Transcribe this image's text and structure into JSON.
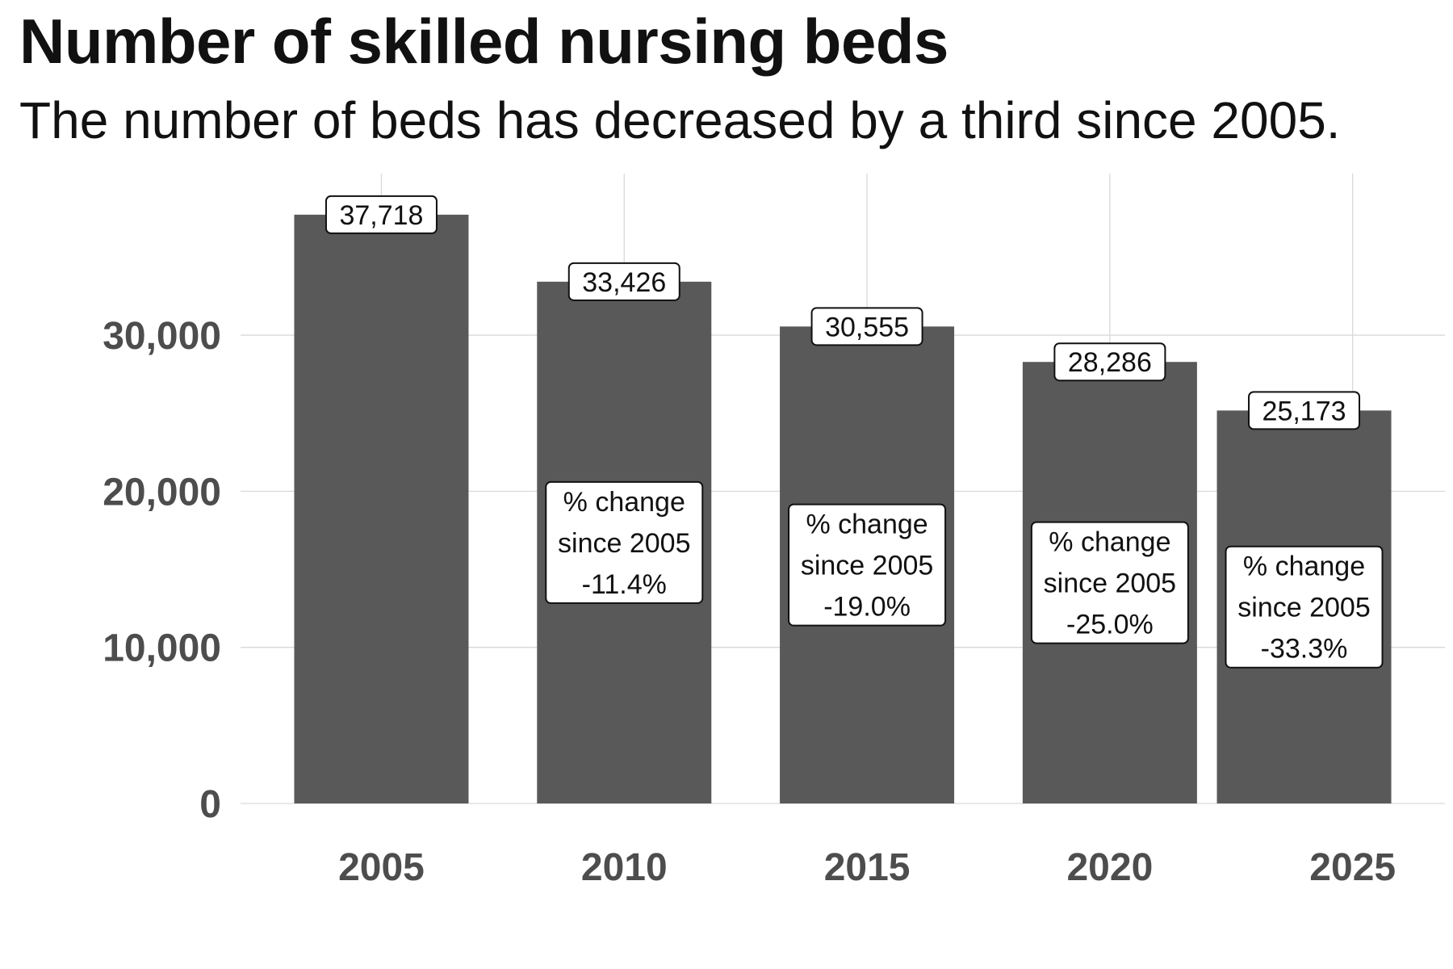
{
  "chart_data": {
    "type": "bar",
    "title": "Number of skilled nursing beds",
    "subtitle": "The number of beds has decreased by a third since 2005.",
    "xlabel": "",
    "ylabel": "",
    "categories": [
      "2005",
      "2010",
      "2015",
      "2020",
      "2025"
    ],
    "x": [
      2005,
      2010,
      2015,
      2020,
      2024
    ],
    "values": [
      37718,
      33426,
      30555,
      28286,
      25173
    ],
    "value_labels": [
      "37,718",
      "33,426",
      "30,555",
      "28,286",
      "25,173"
    ],
    "change_labels": [
      null,
      [
        "% change",
        "since 2005",
        "-11.4%"
      ],
      [
        "% change",
        "since 2005",
        "-19.0%"
      ],
      [
        "% change",
        "since 2005",
        "-25.0%"
      ],
      [
        "% change",
        "since 2005",
        "-33.3%"
      ]
    ],
    "x_ticks": [
      2005,
      2010,
      2015,
      2020,
      2025
    ],
    "x_tick_labels": [
      "2005",
      "2010",
      "2015",
      "2020",
      "2025"
    ],
    "y_ticks": [
      0,
      10000,
      20000,
      30000
    ],
    "y_tick_labels": [
      "0",
      "10,000",
      "20,000",
      "30,000"
    ],
    "xlim": [
      2002.1,
      2026.9
    ],
    "ylim": [
      0,
      40350
    ],
    "grid": true,
    "legend": "none",
    "colors": {
      "bar": "#595959",
      "grid": "#d9d9d9",
      "axis_text": "#4d4d4d",
      "label_border": "#111111"
    }
  }
}
